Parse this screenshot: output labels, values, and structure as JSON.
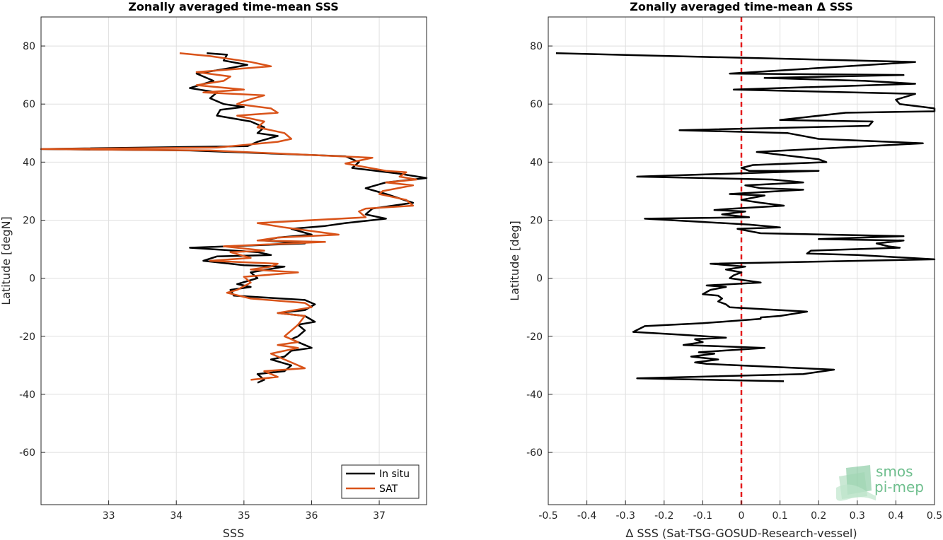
{
  "chart_data": [
    {
      "type": "line",
      "title": "Zonally averaged time-mean SSS",
      "xlabel": "SSS",
      "ylabel": "Latitude [degN]",
      "xlim": [
        32,
        37.7
      ],
      "ylim": [
        -78,
        90
      ],
      "xticks": [
        "33",
        "34",
        "35",
        "36",
        "37"
      ],
      "yticks": [
        "80",
        "60",
        "40",
        "20",
        "0",
        "-20",
        "-40",
        "-60"
      ],
      "grid": true,
      "legend": "bottom-right",
      "series": [
        {
          "name": "In situ",
          "color": "#000000",
          "points": [
            [
              34.45,
              77.5
            ],
            [
              34.75,
              77
            ],
            [
              34.7,
              75
            ],
            [
              35.05,
              73.5
            ],
            [
              34.7,
              72
            ],
            [
              34.3,
              70.5
            ],
            [
              34.55,
              68
            ],
            [
              34.2,
              65.5
            ],
            [
              34.6,
              64
            ],
            [
              34.5,
              62
            ],
            [
              34.7,
              60
            ],
            [
              35,
              59
            ],
            [
              34.65,
              58
            ],
            [
              34.6,
              56
            ],
            [
              35.1,
              54
            ],
            [
              35.3,
              52
            ],
            [
              35.2,
              50
            ],
            [
              35.5,
              49
            ],
            [
              35.2,
              47
            ],
            [
              35.05,
              45.5
            ],
            [
              32,
              44.5
            ],
            [
              34.2,
              44
            ],
            [
              36.5,
              42
            ],
            [
              36.7,
              40
            ],
            [
              36.6,
              38
            ],
            [
              37.3,
              36
            ],
            [
              37.7,
              34.5
            ],
            [
              37.1,
              33
            ],
            [
              36.8,
              31
            ],
            [
              37.1,
              29
            ],
            [
              37.5,
              26
            ],
            [
              36.9,
              24
            ],
            [
              36.8,
              22
            ],
            [
              37.1,
              20.5
            ],
            [
              36.5,
              19
            ],
            [
              36.2,
              18
            ],
            [
              35.7,
              17
            ],
            [
              36,
              15
            ],
            [
              35.5,
              14
            ],
            [
              35.3,
              13
            ],
            [
              35.9,
              12
            ],
            [
              34.2,
              10.5
            ],
            [
              35.2,
              9
            ],
            [
              35.4,
              8
            ],
            [
              34.6,
              7.5
            ],
            [
              34.4,
              6
            ],
            [
              34.8,
              5
            ],
            [
              35,
              4.5
            ],
            [
              35.6,
              4
            ],
            [
              35.1,
              2
            ],
            [
              35.2,
              0
            ],
            [
              34.9,
              -2
            ],
            [
              35.1,
              -3
            ],
            [
              34.8,
              -4
            ],
            [
              34.85,
              -6
            ],
            [
              35.9,
              -7.5
            ],
            [
              36.05,
              -9
            ],
            [
              35.9,
              -11
            ],
            [
              35.5,
              -12
            ],
            [
              35.9,
              -13
            ],
            [
              36.05,
              -15
            ],
            [
              35.8,
              -16
            ],
            [
              35.9,
              -18
            ],
            [
              35.8,
              -20
            ],
            [
              35.7,
              -21
            ],
            [
              35.8,
              -22
            ],
            [
              36,
              -24
            ],
            [
              35.7,
              -25
            ],
            [
              35.6,
              -27
            ],
            [
              35.4,
              -28
            ],
            [
              35.7,
              -30
            ],
            [
              35.6,
              -32
            ],
            [
              35.2,
              -33
            ],
            [
              35.3,
              -35
            ],
            [
              35.2,
              -36
            ]
          ]
        },
        {
          "name": "SAT",
          "color": "#d95319",
          "points": [
            [
              34.05,
              77.5
            ],
            [
              34.5,
              76.5
            ],
            [
              35.1,
              74.5
            ],
            [
              35.4,
              73
            ],
            [
              34.3,
              71
            ],
            [
              34.8,
              69.5
            ],
            [
              34.7,
              68
            ],
            [
              34.3,
              66.5
            ],
            [
              35,
              65
            ],
            [
              34.4,
              64
            ],
            [
              35.3,
              63
            ],
            [
              35,
              61
            ],
            [
              34.9,
              60
            ],
            [
              35.4,
              58.5
            ],
            [
              35.5,
              57
            ],
            [
              34.9,
              56
            ],
            [
              35.3,
              54
            ],
            [
              35.2,
              52
            ],
            [
              35.6,
              50
            ],
            [
              35.7,
              48
            ],
            [
              35.5,
              47
            ],
            [
              34.6,
              45
            ],
            [
              32,
              44.5
            ],
            [
              34.5,
              44
            ],
            [
              36.9,
              41.5
            ],
            [
              36.5,
              39.5
            ],
            [
              37.1,
              37
            ],
            [
              37.4,
              36.5
            ],
            [
              37.3,
              35
            ],
            [
              37.55,
              34
            ],
            [
              37.1,
              33
            ],
            [
              37.5,
              32
            ],
            [
              37.05,
              30
            ],
            [
              37,
              29
            ],
            [
              37.4,
              27
            ],
            [
              37.5,
              25
            ],
            [
              36.8,
              24
            ],
            [
              36.7,
              23
            ],
            [
              36.8,
              21
            ],
            [
              35.2,
              19
            ],
            [
              35.6,
              17.5
            ],
            [
              36.4,
              15
            ],
            [
              35.5,
              14
            ],
            [
              35.2,
              13
            ],
            [
              36.2,
              12.5
            ],
            [
              34.7,
              11
            ],
            [
              35.3,
              9.5
            ],
            [
              34.8,
              9
            ],
            [
              35.1,
              7
            ],
            [
              34.5,
              6
            ],
            [
              35.5,
              5
            ],
            [
              35.4,
              4
            ],
            [
              35.1,
              3
            ],
            [
              35.8,
              2
            ],
            [
              35,
              0.5
            ],
            [
              35.1,
              -1.5
            ],
            [
              34.9,
              -4
            ],
            [
              34.75,
              -5
            ],
            [
              35.1,
              -7
            ],
            [
              35.9,
              -8.5
            ],
            [
              36,
              -10
            ],
            [
              35.5,
              -12
            ],
            [
              35.9,
              -13
            ],
            [
              35.8,
              -16
            ],
            [
              35.7,
              -18
            ],
            [
              35.6,
              -20
            ],
            [
              35.8,
              -22
            ],
            [
              35.5,
              -23
            ],
            [
              35.8,
              -24
            ],
            [
              35.4,
              -26
            ],
            [
              35.6,
              -28
            ],
            [
              35.9,
              -31
            ],
            [
              35.3,
              -32
            ],
            [
              35.5,
              -34
            ],
            [
              35.1,
              -35
            ]
          ]
        }
      ]
    },
    {
      "type": "line",
      "title": "Zonally averaged time-mean Δ SSS",
      "xlabel": "Δ SSS (Sat-TSG-GOSUD-Research-vessel)",
      "ylabel": "Latitude [deg]",
      "xlim": [
        -0.5,
        0.5
      ],
      "ylim": [
        -78,
        90
      ],
      "xticks": [
        "-0.5",
        "-0.4",
        "-0.3",
        "-0.2",
        "-0.1",
        "0",
        "0.1",
        "0.2",
        "0.3",
        "0.4",
        "0.5"
      ],
      "yticks": [
        "80",
        "60",
        "40",
        "20",
        "0",
        "-20",
        "-40",
        "-60"
      ],
      "grid": true,
      "reference_line": {
        "x": 0,
        "color": "#e41a1c",
        "style": "dashed"
      },
      "series": [
        {
          "color": "#000000",
          "points": [
            [
              -0.48,
              77.5
            ],
            [
              0.45,
              74.5
            ],
            [
              -0.03,
              70.5
            ],
            [
              0.42,
              70
            ],
            [
              0.06,
              69
            ],
            [
              0.32,
              68
            ],
            [
              0.45,
              67
            ],
            [
              -0.02,
              65
            ],
            [
              0.45,
              63.5
            ],
            [
              0.4,
              61.5
            ],
            [
              0.41,
              60
            ],
            [
              0.47,
              59
            ],
            [
              0.5,
              58.5
            ],
            [
              0.5,
              57.5
            ],
            [
              0.27,
              57
            ],
            [
              0.1,
              54.5
            ],
            [
              0.34,
              54
            ],
            [
              0.33,
              52.5
            ],
            [
              -0.16,
              51
            ],
            [
              0.12,
              50
            ],
            [
              0.2,
              48
            ],
            [
              0.47,
              46.5
            ],
            [
              0.04,
              43.5
            ],
            [
              0.2,
              41
            ],
            [
              0.22,
              40
            ],
            [
              0.03,
              39
            ],
            [
              0,
              38
            ],
            [
              0.02,
              37
            ],
            [
              0.2,
              37
            ],
            [
              -0.27,
              35
            ],
            [
              0.08,
              34
            ],
            [
              0.16,
              33
            ],
            [
              0.01,
              32
            ],
            [
              0.05,
              31
            ],
            [
              0.16,
              30.5
            ],
            [
              -0.03,
              29
            ],
            [
              0.06,
              28.5
            ],
            [
              0,
              27
            ],
            [
              0.05,
              26
            ],
            [
              0.11,
              25
            ],
            [
              -0.02,
              24
            ],
            [
              -0.07,
              23.5
            ],
            [
              0.01,
              23
            ],
            [
              -0.05,
              22
            ],
            [
              0.02,
              21
            ],
            [
              -0.25,
              20.5
            ],
            [
              0.02,
              18.5
            ],
            [
              0.1,
              17.5
            ],
            [
              -0.01,
              17
            ],
            [
              0.05,
              15.5
            ],
            [
              0.42,
              14.5
            ],
            [
              0.2,
              13.5
            ],
            [
              0.42,
              13
            ],
            [
              0.35,
              12
            ],
            [
              0.38,
              11
            ],
            [
              0.41,
              10.5
            ],
            [
              0.18,
              9.5
            ],
            [
              0.17,
              8.5
            ],
            [
              0.3,
              8
            ],
            [
              0.5,
              6.5
            ],
            [
              -0.08,
              5
            ],
            [
              0.01,
              4
            ],
            [
              -0.04,
              3
            ],
            [
              0,
              2
            ],
            [
              -0.02,
              1
            ],
            [
              -0.03,
              0
            ],
            [
              0.05,
              -1.5
            ],
            [
              -0.09,
              -2.5
            ],
            [
              -0.04,
              -3
            ],
            [
              -0.08,
              -4
            ],
            [
              -0.1,
              -5.5
            ],
            [
              -0.06,
              -6
            ],
            [
              -0.05,
              -7
            ],
            [
              -0.06,
              -8
            ],
            [
              -0.04,
              -9
            ],
            [
              -0.03,
              -10
            ],
            [
              0.17,
              -11.5
            ],
            [
              0.1,
              -13
            ],
            [
              0.05,
              -13.5
            ],
            [
              0.05,
              -14
            ],
            [
              -0.1,
              -15.5
            ],
            [
              -0.25,
              -16.5
            ],
            [
              -0.28,
              -18.5
            ],
            [
              -0.15,
              -19.5
            ],
            [
              -0.04,
              -20.5
            ],
            [
              -0.12,
              -21
            ],
            [
              -0.1,
              -22
            ],
            [
              -0.15,
              -23
            ],
            [
              0.06,
              -24
            ],
            [
              -0.11,
              -25.5
            ],
            [
              -0.07,
              -26
            ],
            [
              -0.13,
              -27
            ],
            [
              -0.06,
              -28
            ],
            [
              -0.12,
              -29
            ],
            [
              -0.09,
              -29.5
            ],
            [
              0.24,
              -31.5
            ],
            [
              0.16,
              -33
            ],
            [
              -0.27,
              -34.5
            ],
            [
              0.11,
              -35.5
            ]
          ]
        }
      ]
    }
  ],
  "legend": {
    "items": [
      "In situ",
      "SAT"
    ]
  },
  "logo": {
    "line1": "smos",
    "line2": "pi-mep"
  }
}
